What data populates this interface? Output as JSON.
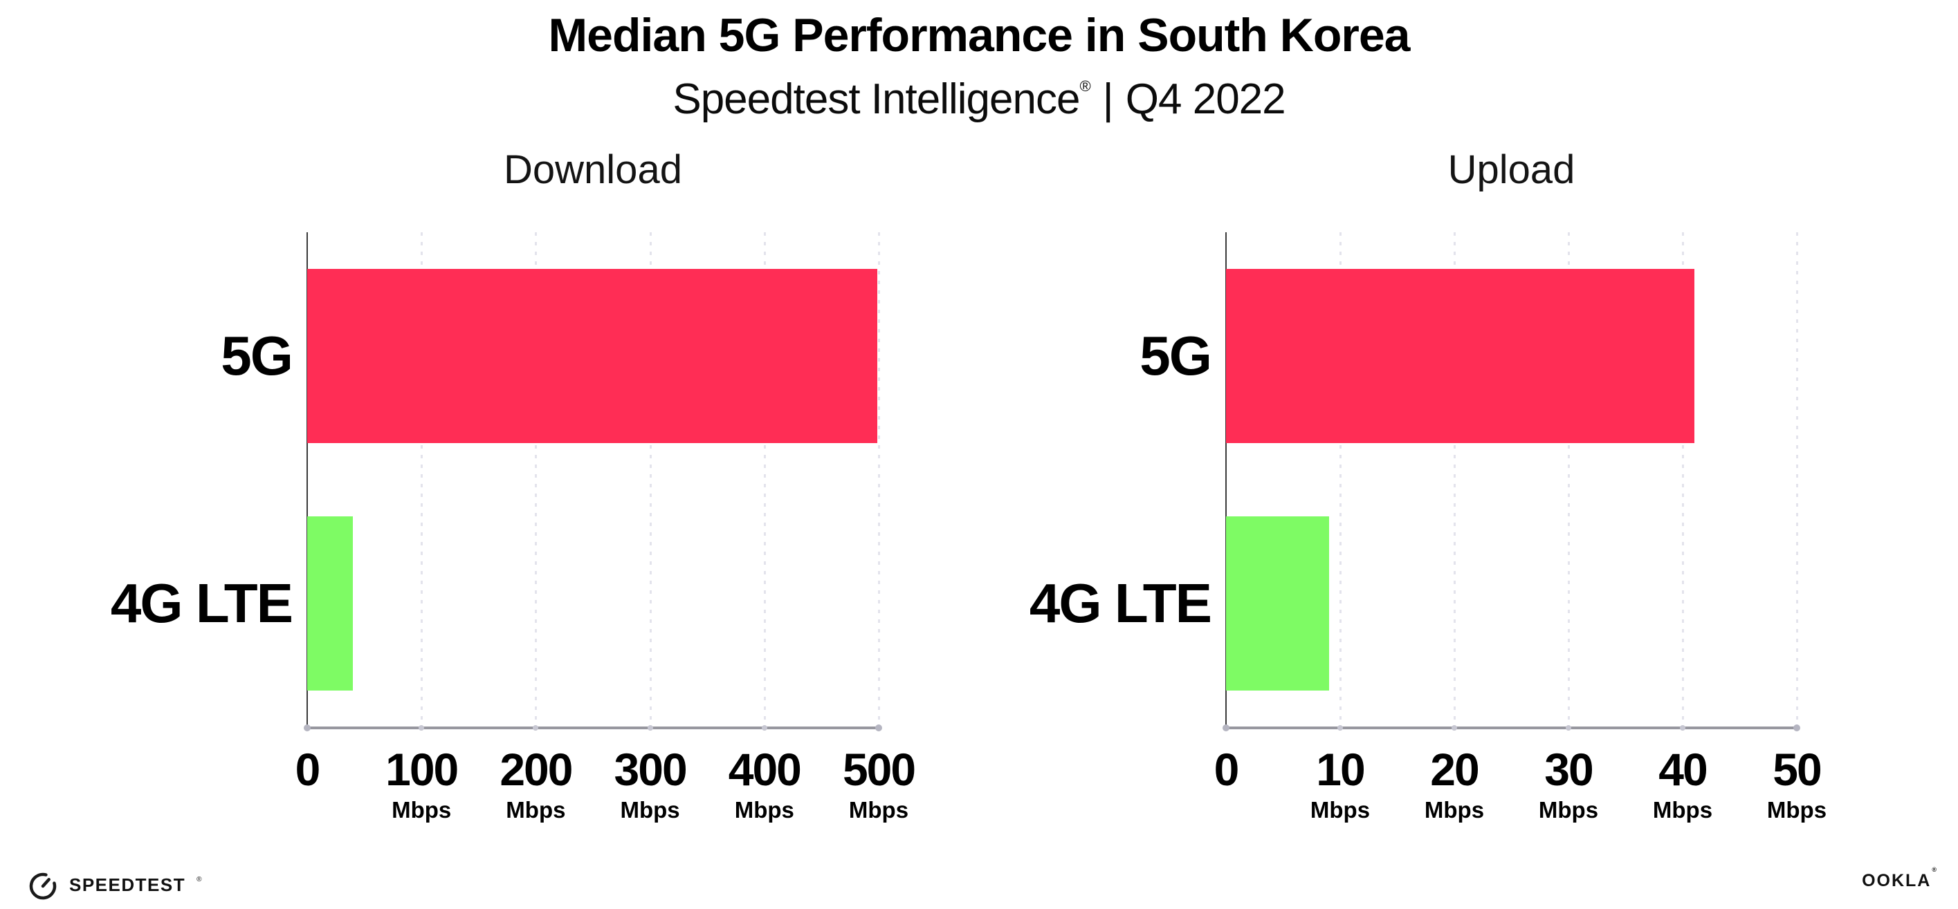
{
  "header": {
    "title": "Median 5G Performance in South Korea",
    "subtitle_brand": "Speedtest Intelligence",
    "subtitle_reg": "®",
    "subtitle_sep": "|",
    "subtitle_period": "Q4 2022"
  },
  "footer": {
    "speedtest_label": "SPEEDTEST",
    "speedtest_reg": "®",
    "ookla_label": "OOKLA",
    "ookla_reg": "®"
  },
  "colors": {
    "bar_5g": "#ff2d55",
    "bar_4g_lte": "#7efb64",
    "gridline": "#e3e3ec",
    "x_axis_line": "#97979f",
    "y_axis_line": "#3a3a3a",
    "text": "#000000"
  },
  "chart_data": [
    {
      "type": "bar",
      "orientation": "horizontal",
      "title": "Download",
      "categories": [
        "5G",
        "4G LTE"
      ],
      "values": [
        499,
        40
      ],
      "unit": "Mbps",
      "xlim": [
        0,
        500
      ],
      "xticks": [
        {
          "label": "0",
          "unit": ""
        },
        {
          "label": "100",
          "unit": "Mbps"
        },
        {
          "label": "200",
          "unit": "Mbps"
        },
        {
          "label": "300",
          "unit": "Mbps"
        },
        {
          "label": "400",
          "unit": "Mbps"
        },
        {
          "label": "500",
          "unit": "Mbps"
        }
      ],
      "bar_colors": [
        "#ff2d55",
        "#7efb64"
      ],
      "grid": "dotted-vertical",
      "legend": "none"
    },
    {
      "type": "bar",
      "orientation": "horizontal",
      "title": "Upload",
      "categories": [
        "5G",
        "4G LTE"
      ],
      "values": [
        41,
        9
      ],
      "unit": "Mbps",
      "xlim": [
        0,
        50
      ],
      "xticks": [
        {
          "label": "0",
          "unit": ""
        },
        {
          "label": "10",
          "unit": "Mbps"
        },
        {
          "label": "20",
          "unit": "Mbps"
        },
        {
          "label": "30",
          "unit": "Mbps"
        },
        {
          "label": "40",
          "unit": "Mbps"
        },
        {
          "label": "50",
          "unit": "Mbps"
        }
      ],
      "bar_colors": [
        "#ff2d55",
        "#7efb64"
      ],
      "grid": "dotted-vertical",
      "legend": "none"
    }
  ]
}
